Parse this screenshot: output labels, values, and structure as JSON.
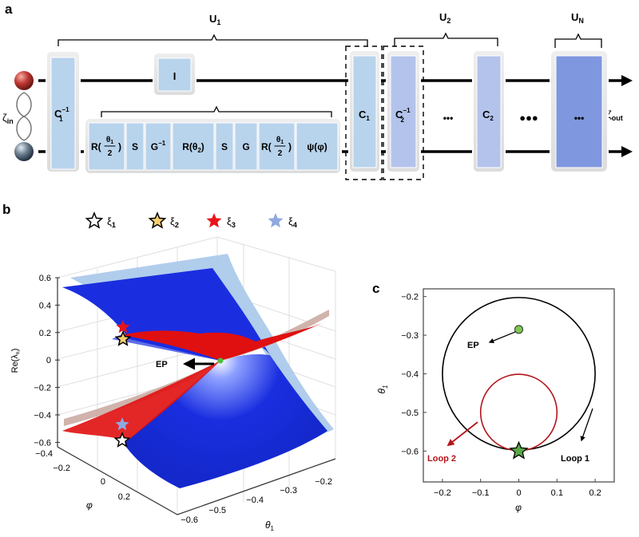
{
  "panel_a": {
    "label": "a",
    "input_label": "ζ",
    "input_sub": "in",
    "output_label": "ζ",
    "output_sub": "out",
    "braces": [
      {
        "label": "U",
        "sub": "1"
      },
      {
        "label": "U",
        "sub": "2"
      },
      {
        "label": "U",
        "sub": "N"
      }
    ],
    "gates": {
      "c1_inv": {
        "main": "C",
        "sub": "1",
        "sup": "−1"
      },
      "identity": "I",
      "sequence": [
        {
          "main": "R(",
          "frac_num": "θ",
          "frac_num_sub": "1",
          "frac_den": "2",
          "close": ")"
        },
        {
          "main": "S"
        },
        {
          "main": "G",
          "sup": "−1"
        },
        {
          "main": "R(θ",
          "sub": "2",
          "close": ")"
        },
        {
          "main": "S"
        },
        {
          "main": "G"
        },
        {
          "main": "R(",
          "frac_num": "θ",
          "frac_num_sub": "1",
          "frac_den": "2",
          "close": ")"
        },
        {
          "main": "ψ(φ)"
        }
      ],
      "c1": {
        "main": "C",
        "sub": "1"
      },
      "c2_inv": {
        "main": "C",
        "sub": "2",
        "sup": "−1"
      },
      "ellipsis_small": "•••",
      "c2": {
        "main": "C",
        "sub": "2"
      },
      "ellipsis_big": "●●●",
      "un_content": "•••"
    },
    "colors": {
      "gate_light": "#b8d3ec",
      "gate_mid": "#b4c3ec",
      "gate_dark": "#7f97de",
      "red_qubit": "#c23a36",
      "gray_qubit": "#5a6a7a"
    }
  },
  "panel_b": {
    "label": "b",
    "legend": [
      {
        "symbol": "ξ",
        "sub": "1",
        "fill": "#ffffff"
      },
      {
        "symbol": "ξ",
        "sub": "2",
        "fill": "#f5cf6e"
      },
      {
        "symbol": "ξ",
        "sub": "3",
        "fill": "#e8141c"
      },
      {
        "symbol": "ξ",
        "sub": "4",
        "fill": "#8fa8e0"
      }
    ],
    "zlabel": "Re(λ",
    "zlabel_sub": "±",
    "zlabel_close": ")",
    "xlabel": "φ",
    "ylabel": "θ",
    "ylabel_sub": "1",
    "z_ticks": [
      "0.6",
      "0.4",
      "0.2",
      "0",
      "−0.2",
      "−0.4",
      "−0.6"
    ],
    "phi_ticks": [
      "−0.4",
      "−0.2",
      "0",
      "0.2"
    ],
    "theta_ticks": [
      "−0.6",
      "−0.5",
      "−0.4",
      "−0.3",
      "−0.2"
    ],
    "ep_label": "EP",
    "colors": {
      "surface_blue": "#1a2ee0",
      "surface_light_blue": "#a9c8ea",
      "surface_red": "#e01010",
      "surface_tan": "#c8a69e",
      "ep_dot": "#4cc040"
    }
  },
  "chart_data": {
    "type": "line",
    "panel": "c",
    "xlabel": "φ",
    "ylabel": "θ",
    "ylabel_sub": "1",
    "xlim": [
      -0.25,
      0.25
    ],
    "ylim": [
      -0.68,
      -0.18
    ],
    "x_ticks": [
      -0.2,
      -0.1,
      0,
      0.1,
      0.2
    ],
    "x_tick_labels": [
      "−0.2",
      "−0.1",
      "0",
      "0.1",
      "0.2"
    ],
    "y_ticks": [
      -0.2,
      -0.3,
      -0.4,
      -0.5,
      -0.6
    ],
    "y_tick_labels": [
      "−0.2",
      "−0.3",
      "−0.4",
      "−0.5",
      "−0.6"
    ],
    "grid": false,
    "series": [
      {
        "name": "Loop 1",
        "shape": "circle",
        "center": [
          0,
          -0.4
        ],
        "radius": 0.2,
        "color": "#000000"
      },
      {
        "name": "Loop 2",
        "shape": "circle",
        "center": [
          0,
          -0.5
        ],
        "radius": 0.1,
        "color": "#b3151c"
      }
    ],
    "points": [
      {
        "name": "EP",
        "x": 0,
        "y": -0.285,
        "marker": "circle",
        "color": "#7ec850"
      },
      {
        "x": 0,
        "y": -0.6,
        "marker": "star",
        "color": "#5aa848"
      }
    ],
    "label": "c"
  }
}
